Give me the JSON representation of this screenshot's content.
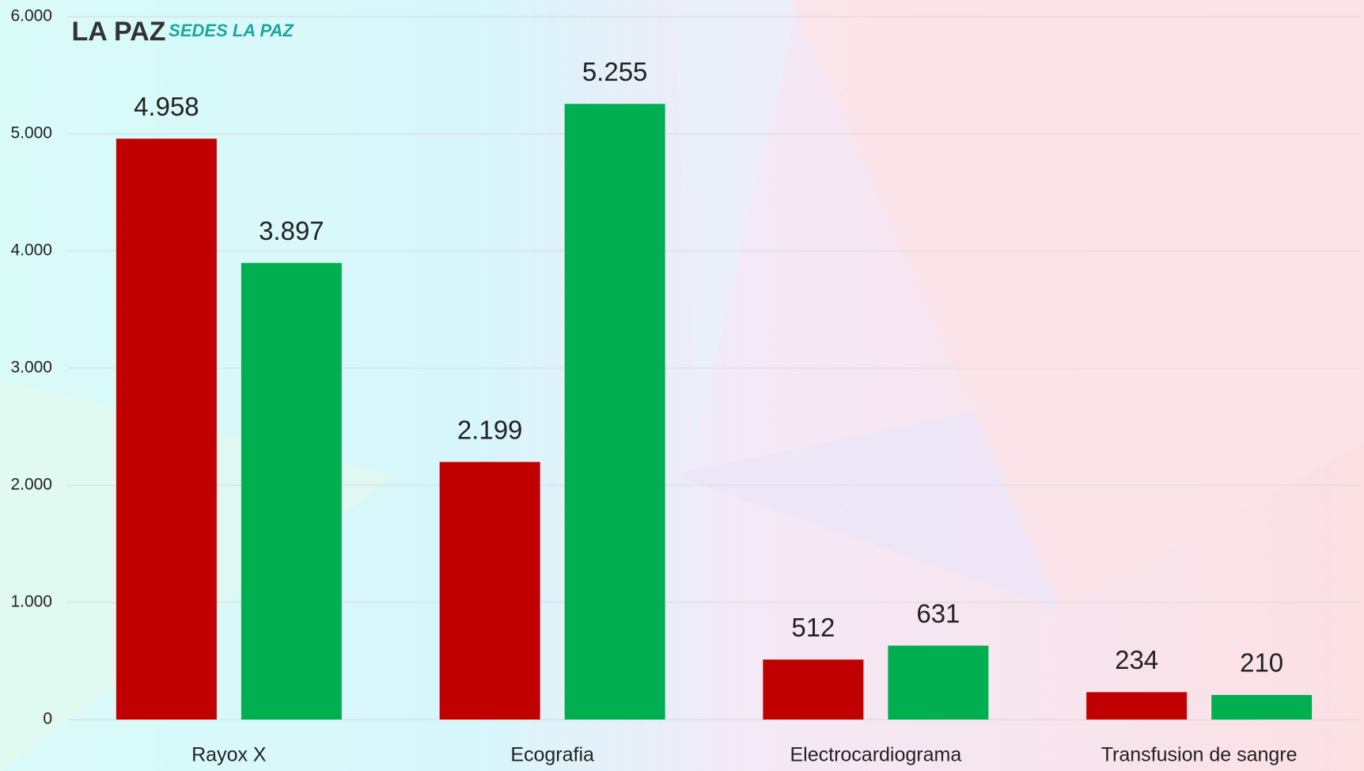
{
  "chart_data": {
    "type": "bar",
    "logos": [
      "LA PAZ",
      "SEDES LA PAZ"
    ],
    "categories": [
      "Rayox X",
      "Ecografia",
      "Electrocardiograma",
      "Transfusion de sangre"
    ],
    "series": [
      {
        "color": "#c00000",
        "values": [
          4958,
          2199,
          512,
          234
        ],
        "value_labels": [
          "4.958",
          "2.199",
          "512",
          "234"
        ]
      },
      {
        "color": "#00b050",
        "values": [
          3897,
          5255,
          631,
          210
        ],
        "value_labels": [
          "3.897",
          "5.255",
          "631",
          "210"
        ]
      }
    ],
    "ylim": [
      0,
      6000
    ],
    "yticks": [
      0,
      {
        "value": 1000,
        "label": "1.000"
      },
      {
        "value": 2000,
        "label": "2.000"
      },
      {
        "value": 3000,
        "label": "3.000"
      },
      {
        "value": 4000,
        "label": "4.000"
      },
      {
        "value": 5000,
        "label": "5.000"
      },
      {
        "value": 6000,
        "label": "6.000"
      }
    ],
    "grid": true
  }
}
